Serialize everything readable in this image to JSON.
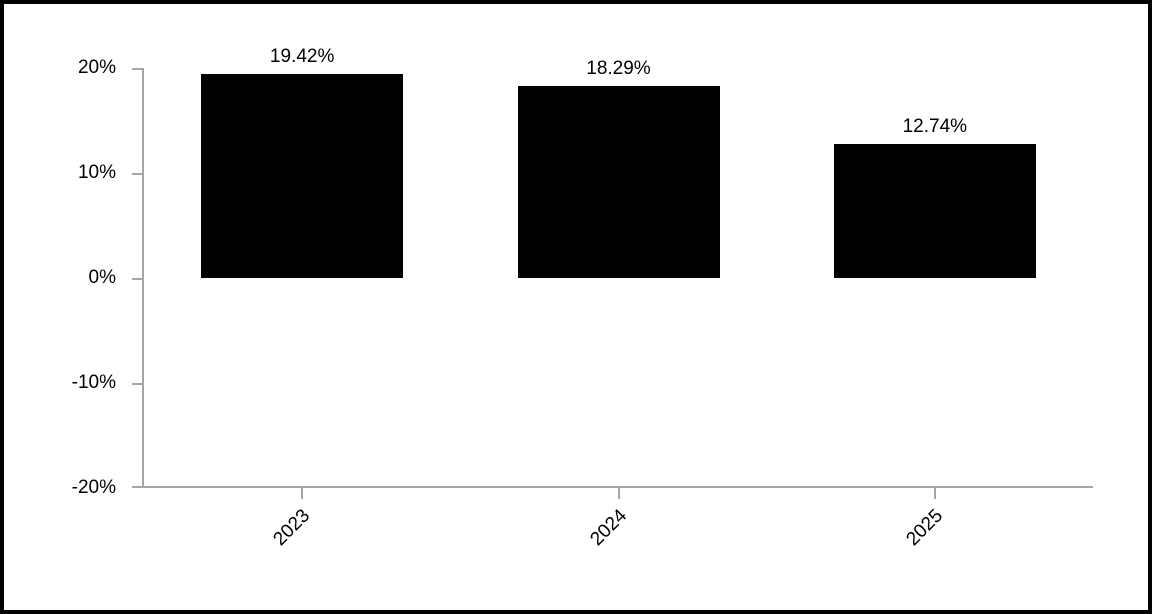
{
  "chart_data": {
    "type": "bar",
    "title": "",
    "xlabel": "",
    "ylabel": "",
    "categories": [
      "2023",
      "2024",
      "2025"
    ],
    "values": [
      19.42,
      18.29,
      12.74
    ],
    "value_labels": [
      "19.42%",
      "18.29%",
      "12.74%"
    ],
    "y_ticks": [
      {
        "label": "20%",
        "value": 20
      },
      {
        "label": "10%",
        "value": 10
      },
      {
        "label": "0%",
        "value": 0
      },
      {
        "label": "-10%",
        "value": -10
      },
      {
        "label": "-20%",
        "value": -20
      }
    ],
    "ylim": [
      -20,
      20
    ],
    "grid": false,
    "legend": false,
    "x_label_rotation_deg": -45,
    "bar_color": "#000000",
    "axis_color": "#A6A6A6",
    "text_color": "#000000",
    "background_color": "#FFFFFF",
    "frame_border_color": "#000000"
  }
}
